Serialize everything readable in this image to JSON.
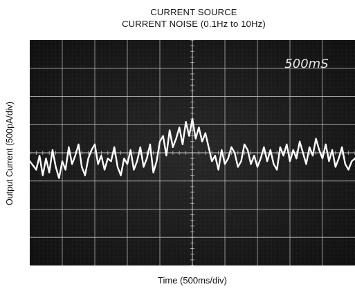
{
  "chart_data": {
    "type": "line",
    "title": "CURRENT SOURCE",
    "subtitle": "CURRENT NOISE (0.1Hz to 10Hz)",
    "xlabel": "Time (500ms/div)",
    "ylabel": "Output Current (500pA/div)",
    "annotation": "500mS",
    "x_divisions": 10,
    "y_divisions": 8,
    "xlim": [
      0,
      10
    ],
    "ylim": [
      -4,
      4
    ],
    "grid": true,
    "colors": {
      "screen": "#1a1a1a",
      "grid": "#cfcfcf",
      "trace": "#ffffff",
      "annotation": "#e6e6e6"
    },
    "series": [
      {
        "x": [
          0.0,
          0.2,
          0.3,
          0.4,
          0.5,
          0.6,
          0.7,
          0.8,
          0.9,
          1.0,
          1.1,
          1.2,
          1.3,
          1.4,
          1.5,
          1.6,
          1.7,
          1.8,
          1.9,
          2.0,
          2.1,
          2.2,
          2.3,
          2.4,
          2.5,
          2.6,
          2.7,
          2.8,
          2.9,
          3.0,
          3.1,
          3.2,
          3.3,
          3.4,
          3.5,
          3.6,
          3.7,
          3.8,
          3.9,
          4.0,
          4.1,
          4.2,
          4.3,
          4.4,
          4.5,
          4.6,
          4.7,
          4.8,
          4.9,
          5.0,
          5.1,
          5.2,
          5.3,
          5.4,
          5.5,
          5.6,
          5.7,
          5.8,
          5.9,
          6.0,
          6.1,
          6.2,
          6.3,
          6.4,
          6.5,
          6.6,
          6.7,
          6.8,
          6.9,
          7.0,
          7.1,
          7.2,
          7.3,
          7.4,
          7.5,
          7.6,
          7.7,
          7.8,
          7.9,
          8.0,
          8.1,
          8.2,
          8.3,
          8.4,
          8.5,
          8.6,
          8.7,
          8.8,
          8.9,
          9.0,
          9.1,
          9.2,
          9.3,
          9.4,
          9.5,
          9.6,
          9.7,
          9.8,
          9.9,
          10.0
        ],
        "y": [
          -0.3,
          -0.6,
          -0.1,
          -0.8,
          -0.2,
          -0.7,
          0.1,
          -0.5,
          -0.9,
          -0.3,
          -0.6,
          0.2,
          -0.4,
          -0.1,
          0.3,
          -0.5,
          -0.8,
          -0.2,
          0.1,
          0.3,
          -0.4,
          -0.1,
          -0.6,
          -0.2,
          -0.3,
          0.2,
          -0.5,
          -0.8,
          -0.2,
          -0.4,
          0.1,
          -0.6,
          -0.3,
          0.2,
          -0.5,
          -0.2,
          0.3,
          -0.7,
          -0.3,
          0.4,
          0.6,
          -0.1,
          0.8,
          0.2,
          0.5,
          0.9,
          0.3,
          1.1,
          0.6,
          1.2,
          0.5,
          0.9,
          0.4,
          0.7,
          0.2,
          -0.3,
          -0.1,
          -0.6,
          0.1,
          -0.4,
          -0.2,
          0.2,
          0.0,
          -0.5,
          -0.3,
          0.3,
          0.1,
          -0.4,
          -0.1,
          -0.5,
          -0.2,
          0.2,
          -0.3,
          0.1,
          -0.4,
          -0.6,
          0.2,
          -0.1,
          0.3,
          -0.3,
          0.1,
          -0.2,
          0.4,
          0.0,
          -0.4,
          0.2,
          -0.1,
          0.5,
          0.1,
          -0.2,
          0.3,
          -0.3,
          0.1,
          -0.5,
          -0.2,
          0.2,
          -0.4,
          -0.6,
          -0.3,
          -0.2
        ]
      }
    ]
  }
}
